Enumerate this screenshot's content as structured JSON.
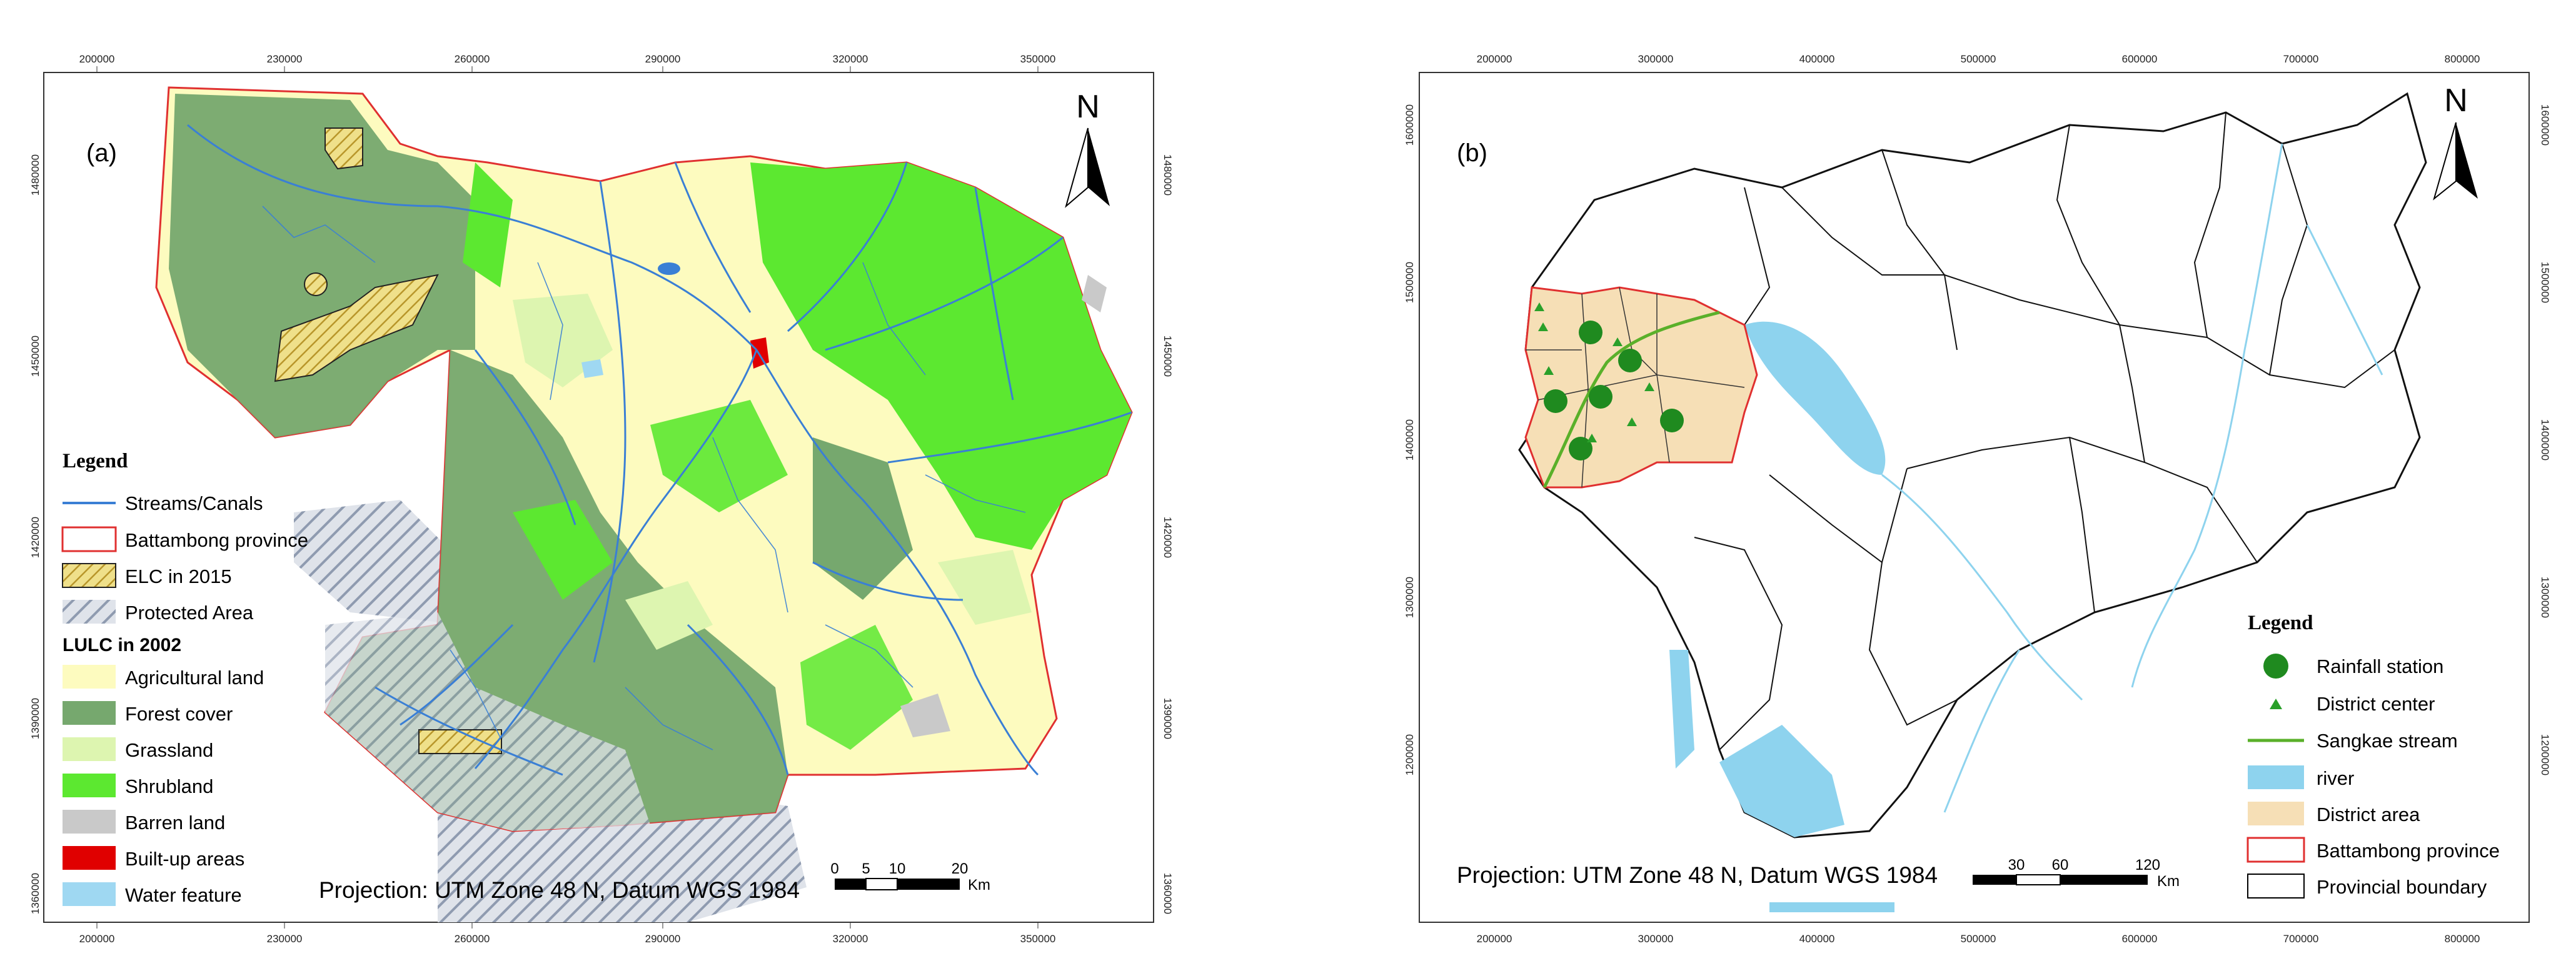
{
  "panel_a": {
    "label": "(a)",
    "north_label": "N",
    "x_ticks": [
      "200000",
      "230000",
      "260000",
      "290000",
      "320000",
      "350000"
    ],
    "y_ticks": [
      "1480000",
      "1450000",
      "1420000",
      "1390000",
      "1360000"
    ],
    "legend_title": "Legend",
    "legend_items": [
      {
        "label": "Streams/Canals",
        "color": "#3a7fd5"
      },
      {
        "label": "Battambong province",
        "color": "#e03030"
      },
      {
        "label": "ELC in 2015",
        "color": "#d8c050"
      },
      {
        "label": "Protected Area",
        "color": "#9aa6b8"
      }
    ],
    "lulc_title": "LULC in 2002",
    "lulc_items": [
      {
        "label": "Agricultural land",
        "color": "#fdfbbf"
      },
      {
        "label": "Forest cover",
        "color": "#76a86e"
      },
      {
        "label": "Grassland",
        "color": "#ddf5b0"
      },
      {
        "label": "Shrubland",
        "color": "#5ce830"
      },
      {
        "label": "Barren land",
        "color": "#c9c9c9"
      },
      {
        "label": "Built-up areas",
        "color": "#e00000"
      },
      {
        "label": "Water feature",
        "color": "#9fd8f2"
      }
    ],
    "projection": "Projection: UTM Zone 48 N, Datum WGS 1984",
    "scale_labels": [
      "0",
      "5",
      "10",
      "20"
    ],
    "scale_unit": "Km"
  },
  "panel_b": {
    "label": "(b)",
    "north_label": "N",
    "x_ticks": [
      "200000",
      "300000",
      "400000",
      "500000",
      "600000",
      "700000",
      "800000"
    ],
    "y_ticks": [
      "1600000",
      "1500000",
      "1400000",
      "1300000",
      "1200000"
    ],
    "legend_title": "Legend",
    "legend_items": [
      {
        "label": "Rainfall station",
        "color": "#1f8a1f"
      },
      {
        "label": "District center",
        "color": "#2aa02a"
      },
      {
        "label": "Sangkae stream",
        "color": "#5ab02a"
      },
      {
        "label": "river",
        "color": "#8ed3ee"
      },
      {
        "label": "District area",
        "color": "#f6dfb6"
      },
      {
        "label": "Battambong province",
        "color": "#e03030"
      },
      {
        "label": "Provincial boundary",
        "color": "#000000"
      }
    ],
    "projection": "Projection: UTM Zone 48 N, Datum WGS 1984",
    "scale_labels": [
      "30",
      "60",
      "120"
    ],
    "scale_unit": "Km"
  }
}
